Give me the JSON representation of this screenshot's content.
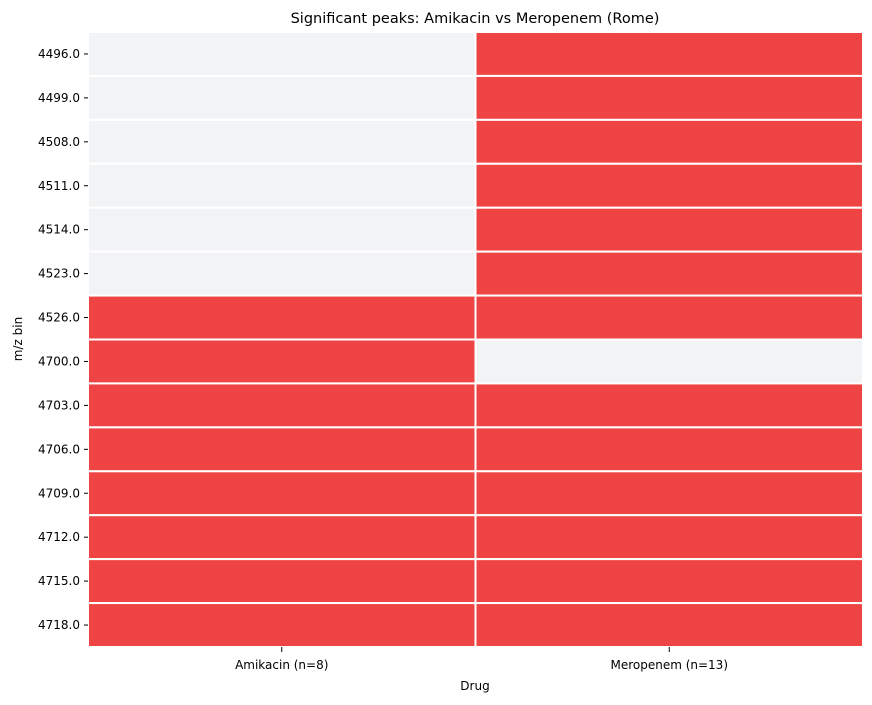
{
  "chart_data": {
    "type": "heatmap",
    "title": "Significant peaks: Amikacin vs Meropenem (Rome)",
    "xlabel": "Drug",
    "ylabel": "m/z bin",
    "x_categories": [
      "Amikacin (n=8)",
      "Meropenem (n=13)"
    ],
    "y_categories": [
      "4496.0",
      "4499.0",
      "4508.0",
      "4511.0",
      "4514.0",
      "4523.0",
      "4526.0",
      "4700.0",
      "4703.0",
      "4706.0",
      "4709.0",
      "4712.0",
      "4715.0",
      "4718.0"
    ],
    "values": [
      [
        0,
        1
      ],
      [
        0,
        1
      ],
      [
        0,
        1
      ],
      [
        0,
        1
      ],
      [
        0,
        1
      ],
      [
        0,
        1
      ],
      [
        1,
        1
      ],
      [
        1,
        0
      ],
      [
        1,
        1
      ],
      [
        1,
        1
      ],
      [
        1,
        1
      ],
      [
        1,
        1
      ],
      [
        1,
        1
      ],
      [
        1,
        1
      ]
    ],
    "colors": {
      "present": "#ef4444",
      "absent": "#f2f3f5",
      "cell_border": "#ffffff"
    },
    "colorbar": false,
    "grid": false
  }
}
